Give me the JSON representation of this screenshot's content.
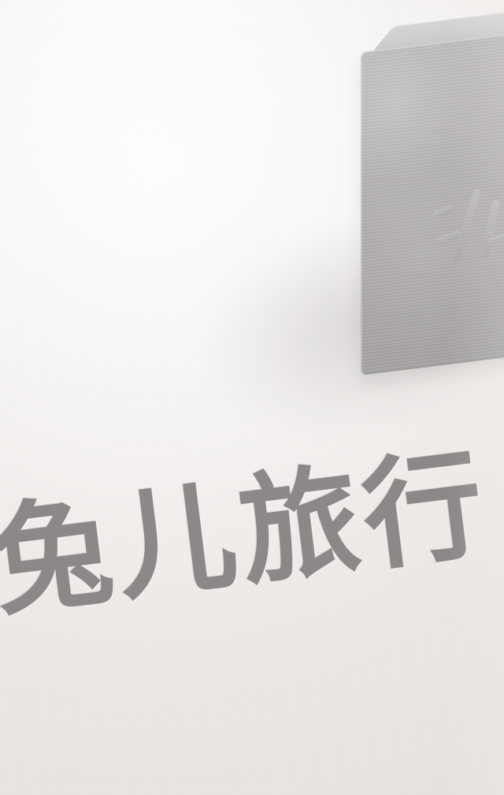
{
  "visible_text": {
    "headline": "兔儿旅行"
  },
  "stamp": {
    "glyph_name": "stamp-glyph"
  },
  "colors": {
    "paper": "#f4f1ef",
    "stamp": "#b5b1b3",
    "text": "#8d8788"
  }
}
